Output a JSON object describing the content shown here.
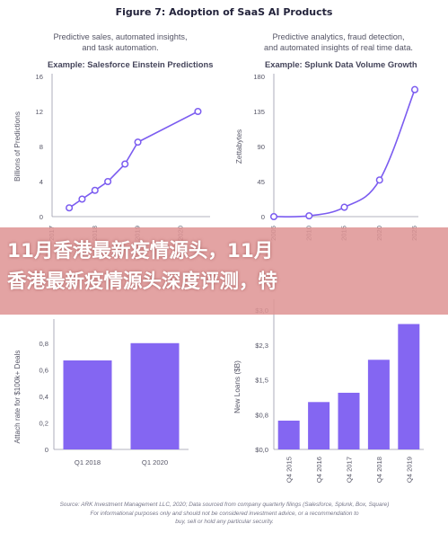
{
  "figure_title": "Figure 7: Adoption of SaaS AI Products",
  "panels": {
    "tl": {
      "desc_line1": "Predictive sales, automated insights,",
      "desc_line2": "and task automation.",
      "example_title": "Example: Salesforce Einstein Predictions"
    },
    "tr": {
      "desc_line1": "Predictive analytics, fraud detection,",
      "desc_line2": "and automated insights of real time data.",
      "example_title": "Example: Splunk Data Volume Growth"
    }
  },
  "banner": {
    "line1": "11月香港最新疫情源头，11月",
    "line2": "香港最新疫情源头深度评测，特"
  },
  "source_line1": "Source: ARK Investment Management LLC, 2020; Data sourced from company quarterly filings (Salesforce, Splunk, Box, Square)",
  "source_line2": "For informational purposes only and should not be considered investment advice, or a recommendation to",
  "source_line3": "buy, sell or hold any particular security.",
  "colors": {
    "accent": "#7b5cf0",
    "bar": "#8466f2",
    "axis": "#9a9aaa"
  },
  "chart_data": [
    {
      "id": "einstein",
      "type": "line",
      "title": "Example: Salesforce Einstein Predictions",
      "ylabel": "Billions of Predictions",
      "xlabel": "",
      "x_ticks": [
        "2017",
        "2018",
        "2019",
        "2020"
      ],
      "y_ticks": [
        "0",
        "4",
        "8",
        "12",
        "16"
      ],
      "xlim": [
        2017,
        2020.6
      ],
      "ylim": [
        0,
        16
      ],
      "x": [
        2017.4,
        2017.7,
        2018.0,
        2018.3,
        2018.7,
        2019.0,
        2020.4
      ],
      "y": [
        1,
        2,
        3,
        4,
        6,
        8.5,
        12
      ]
    },
    {
      "id": "splunk",
      "type": "line",
      "title": "Example: Splunk Data Volume Growth",
      "ylabel": "Zettabytes",
      "xlabel": "",
      "x_ticks": [
        "2005",
        "2010",
        "2015",
        "2020",
        "2025"
      ],
      "y_ticks": [
        "0",
        "45",
        "90",
        "135",
        "180"
      ],
      "xlim": [
        2005,
        2025
      ],
      "ylim": [
        0,
        180
      ],
      "x": [
        2005,
        2010,
        2015,
        2020,
        2025
      ],
      "y": [
        0,
        1,
        12,
        47,
        163
      ]
    },
    {
      "id": "attach",
      "type": "bar",
      "ylabel": "Attach rate for $100k+ Deals",
      "categories": [
        "Q1 2018",
        "Q1 2020"
      ],
      "y_ticks": [
        "0",
        "0,2",
        "0,4",
        "0,6",
        "0,8"
      ],
      "ylim": [
        0,
        0.9
      ],
      "values": [
        0.67,
        0.8
      ]
    },
    {
      "id": "loans",
      "type": "bar",
      "ylabel": "New Loans ($B)",
      "categories": [
        "Q4 2015",
        "Q4 2016",
        "Q4 2017",
        "Q4 2018",
        "Q4 2019"
      ],
      "y_ticks": [
        "$0,0",
        "$0,8",
        "$1,5",
        "$2,3",
        "$3,0"
      ],
      "ylim": [
        0,
        3.0
      ],
      "values": [
        0.62,
        1.02,
        1.22,
        1.93,
        2.7
      ]
    }
  ]
}
